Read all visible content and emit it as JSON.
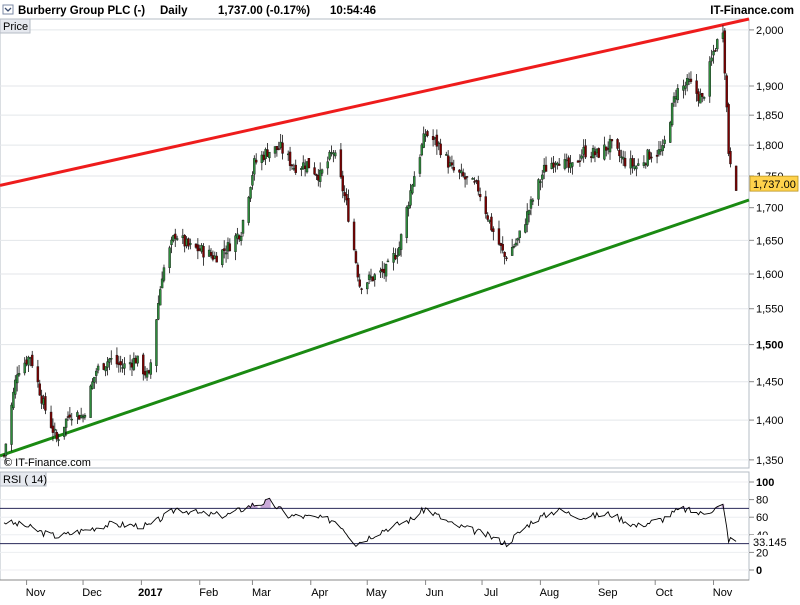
{
  "header": {
    "symbol": "Burberry Group PLC (-)",
    "period": "Daily",
    "price_info": "1,737.00 (-0.17%)",
    "time": "10:54:46",
    "provider": "IT-Finance.com"
  },
  "watermark": "© IT-Finance.com",
  "price_panel_label": "Price",
  "rsi_panel_label": "RSI ( 14)",
  "colors": {
    "up_candle": "#2e8b3c",
    "down_candle": "#7a0000",
    "resistance": "#ee1c1c",
    "support": "#1a8a12",
    "rsi_line": "#000000",
    "rsi_overbought_fill": "#c9a9d9",
    "last_price_tag": "#ffd24c"
  },
  "chart_data": [
    {
      "type": "candlestick",
      "title": "Burberry Group PLC (-)",
      "x_tick_labels": [
        "Nov",
        "Dec",
        "2017",
        "Feb",
        "Mar",
        "Apr",
        "May",
        "Jun",
        "Jul",
        "Aug",
        "Sep",
        "Oct",
        "Nov"
      ],
      "y_tick_labels": [
        "1,350",
        "1,400",
        "1,450",
        "1,500",
        "1,550",
        "1,600",
        "1,650",
        "1,700",
        "1,750",
        "1,800",
        "1,850",
        "1,900",
        "2,000"
      ],
      "ylim": [
        1340,
        2020
      ],
      "y_scale": "log",
      "last_price": 1737,
      "last_price_label": "1,737.00",
      "close_path": [
        {
          "date": "2016-10-20",
          "price": 1355
        },
        {
          "date": "2016-10-27",
          "price": 1465
        },
        {
          "date": "2016-11-03",
          "price": 1485
        },
        {
          "date": "2016-11-10",
          "price": 1420
        },
        {
          "date": "2016-11-17",
          "price": 1375
        },
        {
          "date": "2016-11-24",
          "price": 1410
        },
        {
          "date": "2016-12-01",
          "price": 1405
        },
        {
          "date": "2016-12-08",
          "price": 1465
        },
        {
          "date": "2016-12-15",
          "price": 1480
        },
        {
          "date": "2016-12-22",
          "price": 1470
        },
        {
          "date": "2016-12-29",
          "price": 1480
        },
        {
          "date": "2017-01-05",
          "price": 1455
        },
        {
          "date": "2017-01-12",
          "price": 1600
        },
        {
          "date": "2017-01-19",
          "price": 1660
        },
        {
          "date": "2017-01-26",
          "price": 1640
        },
        {
          "date": "2017-02-02",
          "price": 1635
        },
        {
          "date": "2017-02-09",
          "price": 1625
        },
        {
          "date": "2017-02-16",
          "price": 1640
        },
        {
          "date": "2017-02-23",
          "price": 1665
        },
        {
          "date": "2017-03-02",
          "price": 1770
        },
        {
          "date": "2017-03-09",
          "price": 1790
        },
        {
          "date": "2017-03-16",
          "price": 1795
        },
        {
          "date": "2017-03-23",
          "price": 1765
        },
        {
          "date": "2017-03-30",
          "price": 1770
        },
        {
          "date": "2017-04-06",
          "price": 1750
        },
        {
          "date": "2017-04-13",
          "price": 1790
        },
        {
          "date": "2017-04-20",
          "price": 1705
        },
        {
          "date": "2017-04-27",
          "price": 1585
        },
        {
          "date": "2017-05-04",
          "price": 1595
        },
        {
          "date": "2017-05-11",
          "price": 1605
        },
        {
          "date": "2017-05-18",
          "price": 1640
        },
        {
          "date": "2017-05-25",
          "price": 1740
        },
        {
          "date": "2017-06-01",
          "price": 1820
        },
        {
          "date": "2017-06-08",
          "price": 1800
        },
        {
          "date": "2017-06-15",
          "price": 1760
        },
        {
          "date": "2017-06-22",
          "price": 1745
        },
        {
          "date": "2017-06-29",
          "price": 1730
        },
        {
          "date": "2017-07-06",
          "price": 1670
        },
        {
          "date": "2017-07-13",
          "price": 1625
        },
        {
          "date": "2017-07-20",
          "price": 1650
        },
        {
          "date": "2017-07-27",
          "price": 1705
        },
        {
          "date": "2017-08-03",
          "price": 1760
        },
        {
          "date": "2017-08-10",
          "price": 1780
        },
        {
          "date": "2017-08-17",
          "price": 1760
        },
        {
          "date": "2017-08-24",
          "price": 1790
        },
        {
          "date": "2017-08-31",
          "price": 1785
        },
        {
          "date": "2017-09-07",
          "price": 1800
        },
        {
          "date": "2017-09-14",
          "price": 1775
        },
        {
          "date": "2017-09-21",
          "price": 1765
        },
        {
          "date": "2017-09-28",
          "price": 1785
        },
        {
          "date": "2017-10-05",
          "price": 1790
        },
        {
          "date": "2017-10-12",
          "price": 1890
        },
        {
          "date": "2017-10-19",
          "price": 1905
        },
        {
          "date": "2017-10-26",
          "price": 1875
        },
        {
          "date": "2017-11-01",
          "price": 1960
        },
        {
          "date": "2017-11-06",
          "price": 2005
        },
        {
          "date": "2017-11-09",
          "price": 1790
        },
        {
          "date": "2017-11-13",
          "price": 1737
        }
      ],
      "trendlines": [
        {
          "name": "resistance",
          "color": "red",
          "from": {
            "date": "2016-10-20",
            "price": 1735
          },
          "to": {
            "date": "2017-11-14",
            "price": 2020
          }
        },
        {
          "name": "support",
          "color": "green",
          "from": {
            "date": "2016-10-20",
            "price": 1355
          },
          "to": {
            "date": "2017-11-14",
            "price": 1712
          }
        }
      ]
    },
    {
      "type": "line",
      "title": "RSI ( 14)",
      "y_tick_labels": [
        "100",
        "80",
        "60",
        "40",
        "20",
        "0"
      ],
      "ylim": [
        0,
        100
      ],
      "bands": [
        30,
        70
      ],
      "last_value_label": "33.145",
      "rsi_path": [
        {
          "date": "2016-10-20",
          "value": 55
        },
        {
          "date": "2016-11-01",
          "value": 50
        },
        {
          "date": "2016-11-10",
          "value": 42
        },
        {
          "date": "2016-11-18",
          "value": 38
        },
        {
          "date": "2016-12-01",
          "value": 45
        },
        {
          "date": "2016-12-15",
          "value": 52
        },
        {
          "date": "2017-01-05",
          "value": 50
        },
        {
          "date": "2017-01-20",
          "value": 70
        },
        {
          "date": "2017-02-01",
          "value": 64
        },
        {
          "date": "2017-02-15",
          "value": 62
        },
        {
          "date": "2017-03-01",
          "value": 74
        },
        {
          "date": "2017-03-10",
          "value": 78
        },
        {
          "date": "2017-03-20",
          "value": 62
        },
        {
          "date": "2017-04-01",
          "value": 60
        },
        {
          "date": "2017-04-15",
          "value": 56
        },
        {
          "date": "2017-04-25",
          "value": 30
        },
        {
          "date": "2017-05-10",
          "value": 46
        },
        {
          "date": "2017-05-25",
          "value": 58
        },
        {
          "date": "2017-06-01",
          "value": 70
        },
        {
          "date": "2017-06-15",
          "value": 52
        },
        {
          "date": "2017-07-01",
          "value": 42
        },
        {
          "date": "2017-07-14",
          "value": 30
        },
        {
          "date": "2017-07-28",
          "value": 56
        },
        {
          "date": "2017-08-10",
          "value": 68
        },
        {
          "date": "2017-08-24",
          "value": 60
        },
        {
          "date": "2017-09-07",
          "value": 64
        },
        {
          "date": "2017-09-21",
          "value": 50
        },
        {
          "date": "2017-10-05",
          "value": 58
        },
        {
          "date": "2017-10-15",
          "value": 70
        },
        {
          "date": "2017-10-25",
          "value": 64
        },
        {
          "date": "2017-11-06",
          "value": 73
        },
        {
          "date": "2017-11-09",
          "value": 35
        },
        {
          "date": "2017-11-13",
          "value": 33
        }
      ]
    }
  ]
}
